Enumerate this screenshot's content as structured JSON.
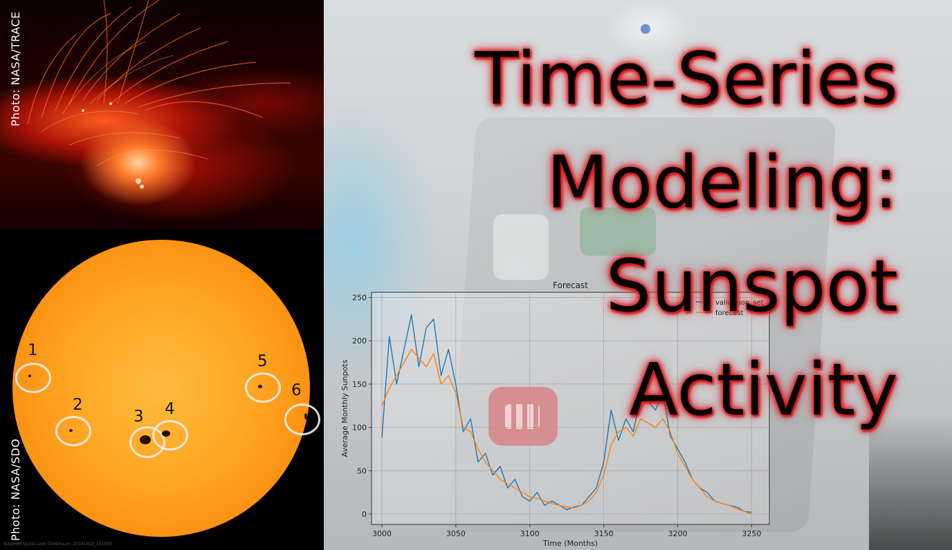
{
  "title": {
    "lines": [
      "Time-Series",
      "Modeling:",
      "Sunspot",
      "Activity"
    ]
  },
  "photos": {
    "top": {
      "credit": "Photo: NASA/TRACE"
    },
    "bottom": {
      "credit": "Photo: NASA/SDO",
      "caption": "SDO/HMI Quick-Look Continuum: 20141023_131500",
      "sunspot_labels": [
        "1",
        "2",
        "3",
        "4",
        "5",
        "6"
      ]
    }
  },
  "colors": {
    "validation": "#1f77b4",
    "forecast": "#ff7f0e",
    "title_glow": "#e0161a"
  },
  "chart_data": {
    "type": "line",
    "title": "Forecast",
    "xlabel": "Time (Months)",
    "ylabel": "Average Monthly Sunpots",
    "xlim": [
      2993,
      3262
    ],
    "ylim": [
      -12,
      256
    ],
    "x_ticks": [
      3000,
      3050,
      3100,
      3150,
      3200,
      3250
    ],
    "y_ticks": [
      0,
      50,
      100,
      150,
      200,
      250
    ],
    "grid": true,
    "legend_placement": "top-right",
    "x": [
      3000,
      3005,
      3010,
      3015,
      3020,
      3025,
      3030,
      3035,
      3040,
      3045,
      3050,
      3055,
      3060,
      3065,
      3070,
      3075,
      3080,
      3085,
      3090,
      3095,
      3100,
      3105,
      3110,
      3115,
      3120,
      3125,
      3130,
      3135,
      3140,
      3145,
      3150,
      3155,
      3160,
      3165,
      3170,
      3175,
      3180,
      3185,
      3190,
      3195,
      3200,
      3205,
      3210,
      3215,
      3220,
      3225,
      3230,
      3235,
      3240,
      3245,
      3250
    ],
    "series": [
      {
        "name": "validation_set",
        "values": [
          88,
          205,
          150,
          190,
          230,
          170,
          215,
          225,
          160,
          190,
          150,
          95,
          110,
          60,
          70,
          45,
          55,
          30,
          40,
          20,
          15,
          25,
          10,
          15,
          10,
          5,
          8,
          10,
          20,
          30,
          60,
          120,
          85,
          110,
          95,
          135,
          130,
          120,
          140,
          90,
          75,
          60,
          40,
          30,
          25,
          15,
          12,
          10,
          8,
          3,
          2
        ]
      },
      {
        "name": "forecast",
        "values": [
          125,
          145,
          160,
          175,
          190,
          180,
          170,
          185,
          150,
          160,
          140,
          100,
          95,
          75,
          60,
          50,
          40,
          35,
          30,
          25,
          20,
          18,
          15,
          12,
          10,
          8,
          7,
          10,
          15,
          25,
          45,
          80,
          95,
          100,
          90,
          110,
          105,
          100,
          110,
          95,
          70,
          55,
          40,
          30,
          20,
          15,
          12,
          10,
          6,
          3,
          0
        ]
      }
    ]
  }
}
